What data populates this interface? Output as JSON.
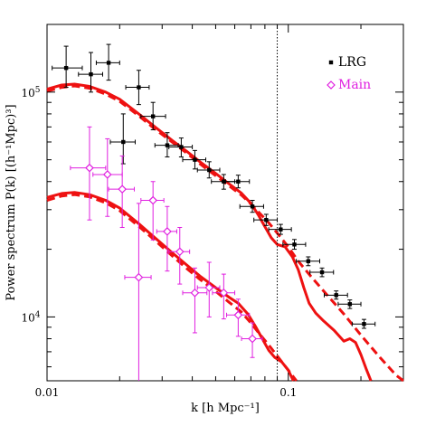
{
  "chart_data": {
    "type": "scatter",
    "title": "",
    "xlabel": "k [h Mpc⁻¹]",
    "ylabel": "Power spectrum P(k) [(h⁻¹Mpc)³]",
    "x_scale": "log",
    "y_scale": "log",
    "xlim": [
      0.01,
      0.3
    ],
    "ylim": [
      5200,
      200000
    ],
    "x_ticks": [
      {
        "value": 0.01,
        "label": "0.01"
      },
      {
        "value": 0.1,
        "label": "0.1"
      }
    ],
    "y_ticks": [
      {
        "value": 10000,
        "base": "10",
        "exp": "4"
      },
      {
        "value": 100000,
        "base": "10",
        "exp": "5"
      }
    ],
    "grid": false,
    "legend_position": "top-right",
    "vertical_line": {
      "x": 0.09,
      "style": "dotted"
    },
    "series": [
      {
        "name": "LRG",
        "marker": "filled-square",
        "color": "#000000",
        "points": [
          {
            "x": 0.012,
            "y": 128000,
            "xerr": [
              0.0105,
              0.014
            ],
            "yerr": [
              105000,
              160000
            ]
          },
          {
            "x": 0.0152,
            "y": 120000,
            "xerr": [
              0.0135,
              0.017
            ],
            "yerr": [
              100000,
              150000
            ]
          },
          {
            "x": 0.018,
            "y": 135000,
            "xerr": [
              0.016,
              0.02
            ],
            "yerr": [
              113000,
              163000
            ]
          },
          {
            "x": 0.0207,
            "y": 60000,
            "xerr": [
              0.0183,
              0.0232
            ],
            "yerr": [
              48000,
              80000
            ]
          },
          {
            "x": 0.024,
            "y": 105000,
            "xerr": [
              0.0212,
              0.0265
            ],
            "yerr": [
              88000,
              125000
            ]
          },
          {
            "x": 0.0275,
            "y": 78000,
            "xerr": [
              0.0245,
              0.031
            ],
            "yerr": [
              68000,
              90000
            ]
          },
          {
            "x": 0.0315,
            "y": 58000,
            "xerr": [
              0.028,
              0.035
            ],
            "yerr": [
              51500,
              66000
            ]
          },
          {
            "x": 0.036,
            "y": 57000,
            "xerr": [
              0.032,
              0.04
            ],
            "yerr": [
              51500,
              62500
            ]
          },
          {
            "x": 0.041,
            "y": 50000,
            "xerr": [
              0.0365,
              0.0455
            ],
            "yerr": [
              45500,
              55000
            ]
          },
          {
            "x": 0.047,
            "y": 45000,
            "xerr": [
              0.042,
              0.052
            ],
            "yerr": [
              41500,
              49000
            ]
          },
          {
            "x": 0.054,
            "y": 40000,
            "xerr": [
              0.048,
              0.06
            ],
            "yerr": [
              37000,
              43000
            ]
          },
          {
            "x": 0.062,
            "y": 40000,
            "xerr": [
              0.055,
              0.069
            ],
            "yerr": [
              37500,
              42700
            ]
          },
          {
            "x": 0.071,
            "y": 31000,
            "xerr": [
              0.063,
              0.079
            ],
            "yerr": [
              29200,
              33000
            ]
          },
          {
            "x": 0.081,
            "y": 27000,
            "xerr": [
              0.072,
              0.09
            ],
            "yerr": [
              25500,
              28600
            ]
          },
          {
            "x": 0.093,
            "y": 24500,
            "xerr": [
              0.083,
              0.103
            ],
            "yerr": [
              23300,
              25800
            ]
          },
          {
            "x": 0.106,
            "y": 21000,
            "xerr": [
              0.095,
              0.118
            ],
            "yerr": [
              20000,
              22100
            ]
          },
          {
            "x": 0.121,
            "y": 17700,
            "xerr": [
              0.108,
              0.135
            ],
            "yerr": [
              16900,
              18500
            ]
          },
          {
            "x": 0.138,
            "y": 15800,
            "xerr": [
              0.123,
              0.154
            ],
            "yerr": [
              15100,
              16500
            ]
          },
          {
            "x": 0.158,
            "y": 12500,
            "xerr": [
              0.141,
              0.176
            ],
            "yerr": [
              12000,
              13050
            ]
          },
          {
            "x": 0.18,
            "y": 11400,
            "xerr": [
              0.161,
              0.2
            ],
            "yerr": [
              10900,
              11900
            ]
          },
          {
            "x": 0.206,
            "y": 9300,
            "xerr": [
              0.184,
              0.229
            ],
            "yerr": [
              8900,
              9750
            ]
          }
        ]
      },
      {
        "name": "Main",
        "marker": "open-diamond",
        "color": "#e020e0",
        "points": [
          {
            "x": 0.015,
            "y": 46000,
            "xerr": [
              0.0125,
              0.0175
            ],
            "yerr": [
              27000,
              70000
            ]
          },
          {
            "x": 0.0178,
            "y": 43000,
            "xerr": [
              0.0155,
              0.0205
            ],
            "yerr": [
              28000,
              62000
            ]
          },
          {
            "x": 0.0205,
            "y": 37000,
            "xerr": [
              0.018,
              0.023
            ],
            "yerr": [
              25000,
              52000
            ]
          },
          {
            "x": 0.024,
            "y": 15000,
            "xerr": [
              0.021,
              0.027
            ],
            "yerr": [
              5200,
              32000
            ]
          },
          {
            "x": 0.0275,
            "y": 33000,
            "xerr": [
              0.0245,
              0.0305
            ],
            "yerr": [
              22000,
              40000
            ]
          },
          {
            "x": 0.0315,
            "y": 24000,
            "xerr": [
              0.0285,
              0.0345
            ],
            "yerr": [
              16000,
              31000
            ]
          },
          {
            "x": 0.0355,
            "y": 19500,
            "xerr": [
              0.032,
              0.039
            ],
            "yerr": [
              14000,
              25000
            ]
          },
          {
            "x": 0.041,
            "y": 12800,
            "xerr": [
              0.0365,
              0.046
            ],
            "yerr": [
              8500,
              16500
            ]
          },
          {
            "x": 0.047,
            "y": 13500,
            "xerr": [
              0.042,
              0.052
            ],
            "yerr": [
              10000,
              17500
            ]
          },
          {
            "x": 0.054,
            "y": 12800,
            "xerr": [
              0.0485,
              0.06
            ],
            "yerr": [
              9800,
              15500
            ]
          },
          {
            "x": 0.062,
            "y": 10200,
            "xerr": [
              0.0555,
              0.069
            ],
            "yerr": [
              8200,
              12000
            ]
          },
          {
            "x": 0.071,
            "y": 8000,
            "xerr": [
              0.064,
              0.078
            ],
            "yerr": [
              6600,
              9400
            ]
          }
        ]
      }
    ],
    "curves": [
      {
        "color": "#ee1111",
        "style": "solid",
        "points": [
          [
            0.01,
            103000
          ],
          [
            0.0115,
            107500
          ],
          [
            0.013,
            108500
          ],
          [
            0.015,
            106000
          ],
          [
            0.0175,
            100000
          ],
          [
            0.02,
            93000
          ],
          [
            0.024,
            80000
          ],
          [
            0.028,
            70000
          ],
          [
            0.033,
            61000
          ],
          [
            0.038,
            54500
          ],
          [
            0.043,
            49000
          ],
          [
            0.05,
            43500
          ],
          [
            0.057,
            39000
          ],
          [
            0.064,
            35500
          ],
          [
            0.07,
            32000
          ],
          [
            0.075,
            28500
          ],
          [
            0.08,
            25200
          ],
          [
            0.085,
            22500
          ],
          [
            0.09,
            21000
          ],
          [
            0.097,
            20500
          ],
          [
            0.104,
            18500
          ],
          [
            0.11,
            16200
          ],
          [
            0.116,
            13500
          ],
          [
            0.122,
            11500
          ],
          [
            0.13,
            10400
          ],
          [
            0.14,
            9600
          ],
          [
            0.155,
            8700
          ],
          [
            0.17,
            7800
          ],
          [
            0.18,
            8000
          ],
          [
            0.19,
            7700
          ],
          [
            0.2,
            6800
          ],
          [
            0.21,
            5900
          ],
          [
            0.22,
            5200
          ]
        ]
      },
      {
        "color": "#ee1111",
        "style": "dashed",
        "points": [
          [
            0.01,
            101000
          ],
          [
            0.0115,
            105000
          ],
          [
            0.013,
            106500
          ],
          [
            0.015,
            104000
          ],
          [
            0.0175,
            98000
          ],
          [
            0.02,
            91000
          ],
          [
            0.024,
            78500
          ],
          [
            0.028,
            68500
          ],
          [
            0.033,
            60000
          ],
          [
            0.038,
            53500
          ],
          [
            0.043,
            48000
          ],
          [
            0.05,
            42500
          ],
          [
            0.057,
            38200
          ],
          [
            0.064,
            34800
          ],
          [
            0.07,
            31800
          ],
          [
            0.076,
            29000
          ],
          [
            0.083,
            26200
          ],
          [
            0.09,
            23600
          ],
          [
            0.1,
            20500
          ],
          [
            0.11,
            17700
          ],
          [
            0.125,
            15000
          ],
          [
            0.145,
            12500
          ],
          [
            0.17,
            10300
          ],
          [
            0.2,
            8300
          ],
          [
            0.24,
            6600
          ],
          [
            0.28,
            5500
          ],
          [
            0.3,
            5000
          ]
        ]
      },
      {
        "color": "#ee1111",
        "style": "solid",
        "points": [
          [
            0.01,
            34000
          ],
          [
            0.0115,
            35400
          ],
          [
            0.013,
            35800
          ],
          [
            0.015,
            35000
          ],
          [
            0.0175,
            33000
          ],
          [
            0.02,
            30500
          ],
          [
            0.024,
            26000
          ],
          [
            0.028,
            22500
          ],
          [
            0.033,
            19300
          ],
          [
            0.038,
            17000
          ],
          [
            0.043,
            15200
          ],
          [
            0.05,
            13500
          ],
          [
            0.057,
            12200
          ],
          [
            0.062,
            11500
          ],
          [
            0.068,
            10300
          ],
          [
            0.073,
            9100
          ],
          [
            0.078,
            8000
          ],
          [
            0.083,
            7100
          ],
          [
            0.088,
            6600
          ],
          [
            0.094,
            6300
          ],
          [
            0.1,
            5800
          ],
          [
            0.105,
            5200
          ]
        ]
      },
      {
        "color": "#ee1111",
        "style": "dashed",
        "points": [
          [
            0.01,
            33000
          ],
          [
            0.0115,
            34500
          ],
          [
            0.013,
            35000
          ],
          [
            0.015,
            34200
          ],
          [
            0.0175,
            32200
          ],
          [
            0.02,
            29700
          ],
          [
            0.024,
            25300
          ],
          [
            0.028,
            21900
          ],
          [
            0.033,
            18700
          ],
          [
            0.038,
            16400
          ],
          [
            0.043,
            14700
          ],
          [
            0.05,
            13000
          ],
          [
            0.057,
            11600
          ],
          [
            0.064,
            10500
          ],
          [
            0.07,
            9400
          ],
          [
            0.076,
            8400
          ],
          [
            0.083,
            7500
          ],
          [
            0.09,
            6700
          ],
          [
            0.1,
            5800
          ],
          [
            0.108,
            5200
          ]
        ]
      }
    ]
  }
}
